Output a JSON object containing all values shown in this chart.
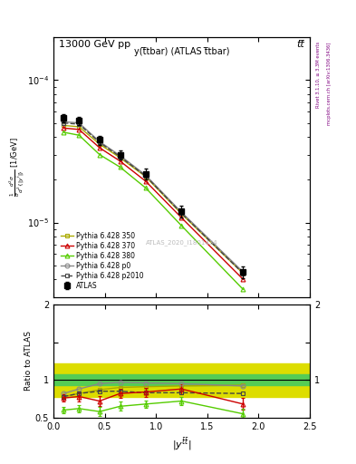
{
  "title_top": "13000 GeV pp",
  "title_right": "tt̅",
  "plot_title": "y(t̅tbar) (ATLAS t̅tbar)",
  "watermark": "ATLAS_2020_I1801434",
  "right_label_top": "Rivet 3.1.10, ≥ 3.3M events",
  "right_label_bottom": "mcplots.cern.ch [arXiv:1306.3436]",
  "ylabel_ratio": "Ratio to ATLAS",
  "xlabel": "|y^{tbar}|",
  "x_centers": [
    0.1,
    0.25,
    0.45,
    0.65,
    0.9,
    1.25,
    1.85
  ],
  "atlas_y": [
    5.4e-05,
    5.2e-05,
    3.8e-05,
    3e-05,
    2.2e-05,
    1.2e-05,
    4.5e-06
  ],
  "atlas_yerr": [
    3.5e-06,
    3.5e-06,
    2.8e-06,
    2.2e-06,
    1.8e-06,
    1.2e-06,
    4.5e-07
  ],
  "p350_y": [
    4.8e-05,
    4.7e-05,
    3.55e-05,
    2.85e-05,
    2.1e-05,
    1.15e-05,
    4.4e-06
  ],
  "p370_y": [
    4.6e-05,
    4.5e-05,
    3.35e-05,
    2.7e-05,
    1.95e-05,
    1.08e-05,
    4e-06
  ],
  "p380_y": [
    4.3e-05,
    4.1e-05,
    3e-05,
    2.45e-05,
    1.75e-05,
    9.5e-06,
    3.4e-06
  ],
  "pp0_y": [
    5.1e-05,
    5e-05,
    3.7e-05,
    2.95e-05,
    2.15e-05,
    1.18e-05,
    4.5e-06
  ],
  "pp2010_y": [
    5e-05,
    4.9e-05,
    3.65e-05,
    2.9e-05,
    2.12e-05,
    1.16e-05,
    4.4e-06
  ],
  "ratio_p350": [
    0.78,
    0.82,
    0.87,
    0.9,
    0.91,
    0.92,
    0.93
  ],
  "ratio_p370": [
    0.76,
    0.78,
    0.72,
    0.82,
    0.84,
    0.88,
    0.68
  ],
  "ratio_p380": [
    0.6,
    0.62,
    0.58,
    0.65,
    0.68,
    0.72,
    0.55
  ],
  "ratio_pp0": [
    0.82,
    0.88,
    0.95,
    0.97,
    0.96,
    0.95,
    0.92
  ],
  "ratio_pp2010": [
    0.78,
    0.82,
    0.85,
    0.85,
    0.83,
    0.83,
    0.82
  ],
  "ratio_p370_err": [
    0.05,
    0.06,
    0.07,
    0.06,
    0.06,
    0.07,
    0.08
  ],
  "ratio_p380_err": [
    0.04,
    0.05,
    0.06,
    0.06,
    0.05,
    0.06,
    0.07
  ],
  "ratio_band_inner_lo": 0.93,
  "ratio_band_inner_hi": 1.08,
  "ratio_band_outer_lo": 0.78,
  "ratio_band_outer_hi": 1.22,
  "color_atlas": "#000000",
  "color_p350": "#aaaa00",
  "color_p370": "#cc0000",
  "color_p380": "#55cc00",
  "color_pp0": "#888888",
  "color_pp2010": "#444444",
  "color_band_inner": "#55cc55",
  "color_band_outer": "#dddd00",
  "xlim": [
    0.0,
    2.5
  ],
  "ylim_main": [
    3e-06,
    0.0002
  ],
  "ylim_ratio": [
    0.5,
    2.0
  ]
}
